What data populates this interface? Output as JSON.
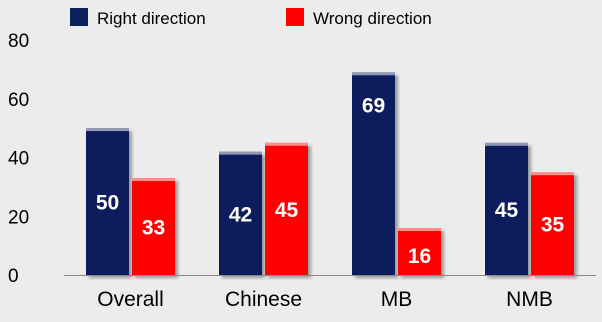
{
  "chart_data": {
    "type": "bar",
    "categories": [
      "Overall",
      "Chinese",
      "MB",
      "NMB"
    ],
    "series": [
      {
        "name": "Right direction",
        "values": [
          50,
          42,
          69,
          45
        ],
        "color": "#0a1f5c"
      },
      {
        "name": "Wrong direction",
        "values": [
          33,
          45,
          16,
          35
        ],
        "color": "#ff0000"
      }
    ],
    "yticks": [
      0,
      20,
      40,
      60,
      80
    ],
    "ylim": [
      0,
      80
    ],
    "grid": false,
    "legend": "top",
    "data_labels": true
  }
}
